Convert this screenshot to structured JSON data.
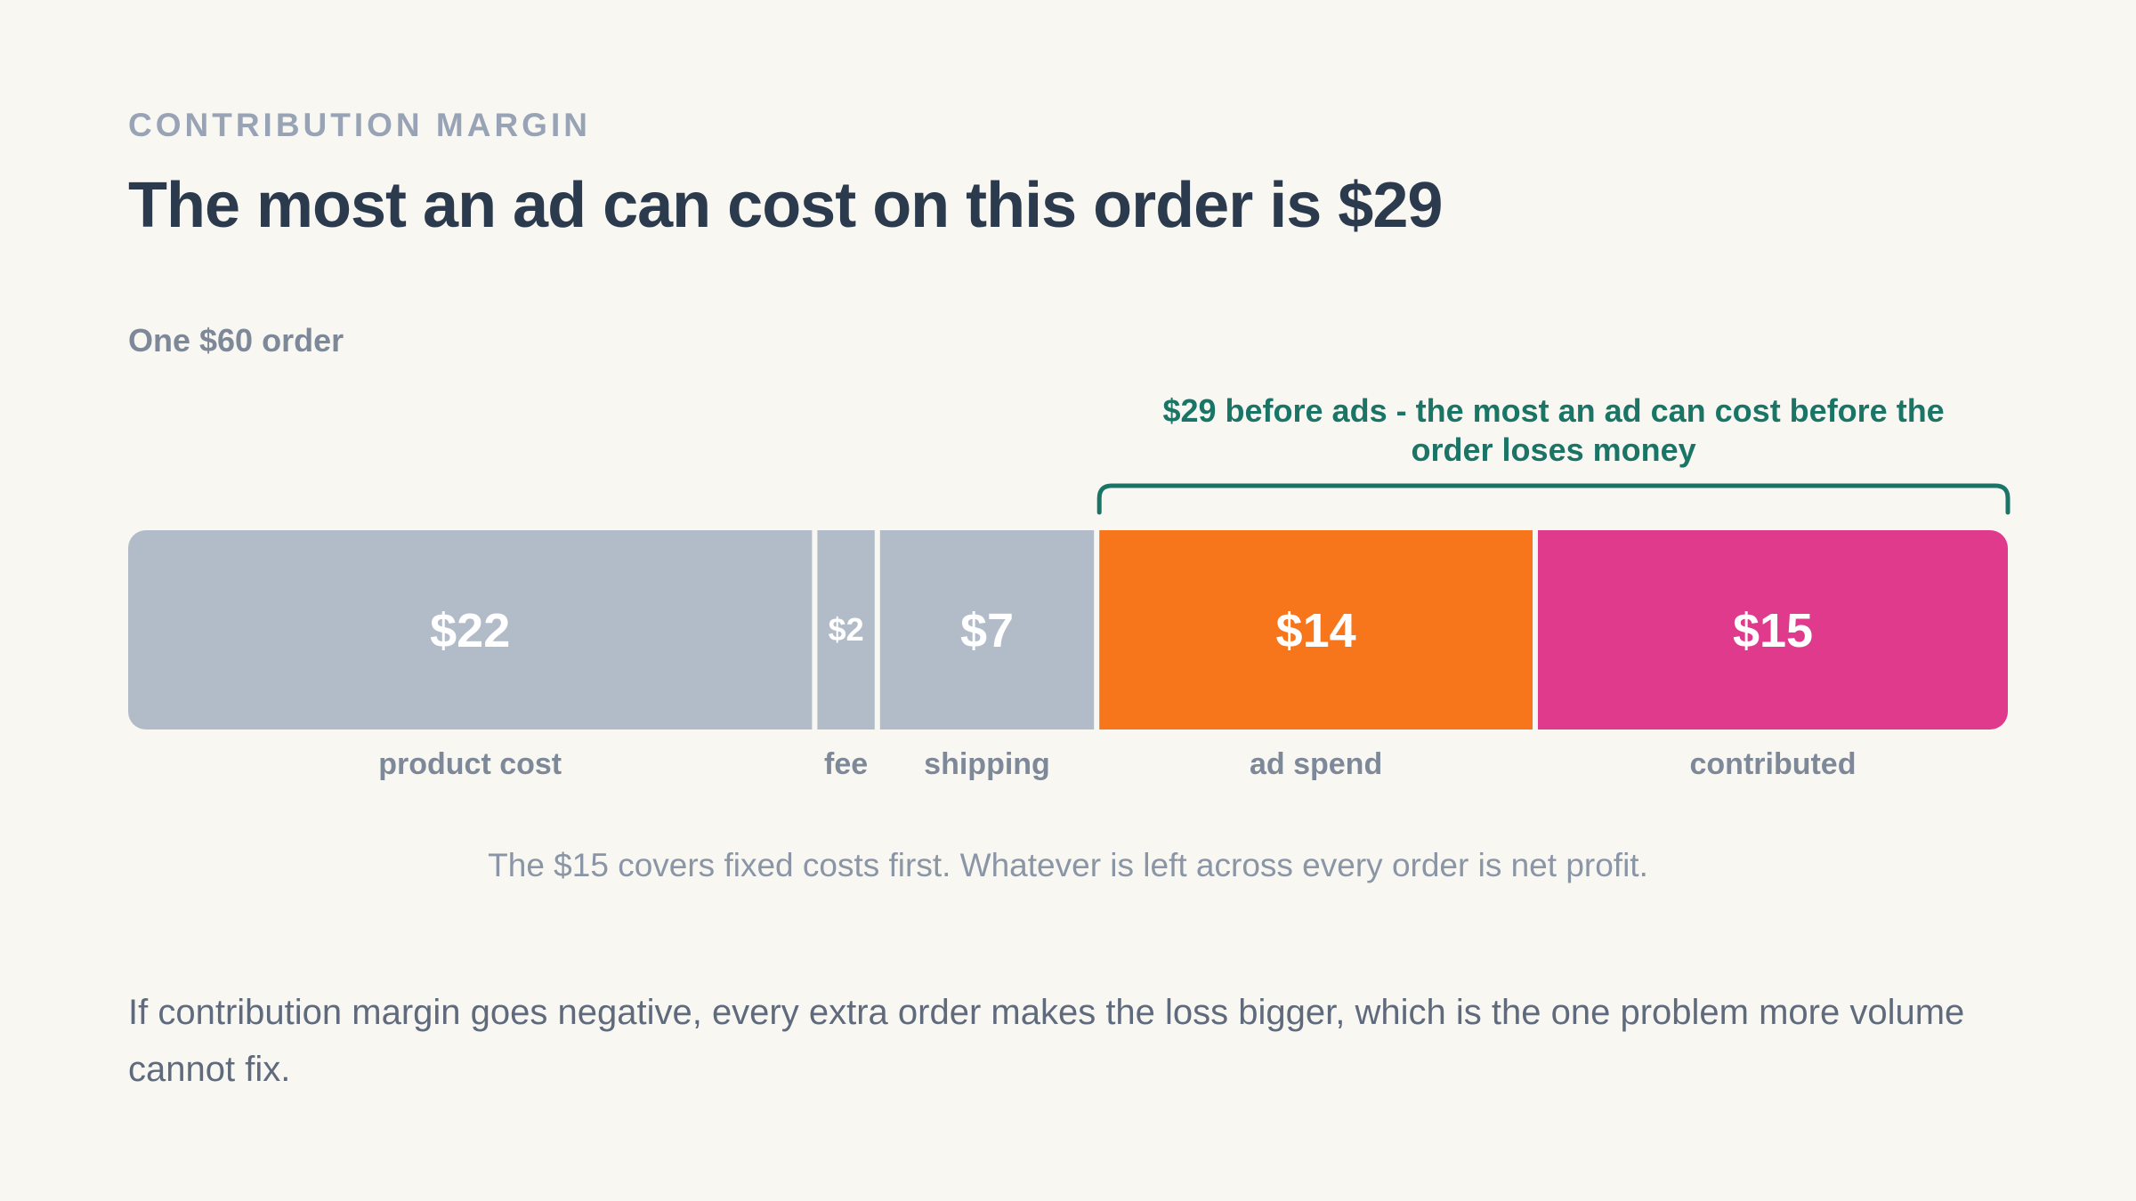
{
  "eyebrow": "CONTRIBUTION MARGIN",
  "title": "The most an ad can cost on this order is $29",
  "subtitle": "One $60 order",
  "caption": "The $15 covers fixed costs first. Whatever is left across every order is net profit.",
  "footnote": "If contribution margin goes negative, every extra order makes the loss bigger, which is the one problem more volume cannot fix.",
  "colors": {
    "cost": "#b2bcc9",
    "ad_spend": "#f7751b",
    "contributed": "#e03a8d",
    "bracket": "#1a7566",
    "category_label": "#7d8898"
  },
  "chart_data": {
    "type": "bar",
    "orientation": "horizontal-stacked",
    "total": 60,
    "segments": [
      {
        "category": "product cost",
        "value": 22,
        "label": "$22",
        "color": "#b2bcc9"
      },
      {
        "category": "fee",
        "value": 2,
        "label": "$2",
        "color": "#b2bcc9"
      },
      {
        "category": "shipping",
        "value": 7,
        "label": "$7",
        "color": "#b2bcc9"
      },
      {
        "category": "ad spend",
        "value": 14,
        "label": "$14",
        "color": "#f7751b"
      },
      {
        "category": "contributed",
        "value": 15,
        "label": "$15",
        "color": "#e03a8d"
      }
    ],
    "annotation": {
      "text_lines": [
        "$29 before ads - the most an ad can cost before the",
        "order loses money"
      ],
      "from_segment": 3,
      "to_segment": 4
    }
  }
}
